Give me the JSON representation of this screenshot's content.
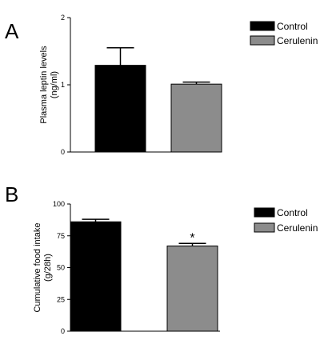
{
  "chart_data": [
    {
      "type": "bar",
      "panel": "A",
      "categories": [
        "Control",
        "Cerulenin"
      ],
      "values": [
        1.29,
        1.01
      ],
      "errors": [
        0.26,
        0.03
      ],
      "colors": [
        "#000000",
        "#8c8c8c"
      ],
      "ylabel_lines": [
        "Plasma leptin levels",
        "(ng/ml)"
      ],
      "ylim": [
        0,
        2
      ],
      "yticks": [
        0,
        1,
        2
      ],
      "ytick_labels": [
        "0",
        "1",
        "2"
      ],
      "significance": [
        "",
        ""
      ],
      "legend": {
        "position": "top-right",
        "entries": [
          {
            "label": "Control",
            "color": "#000000"
          },
          {
            "label": "Cerulenin",
            "color": "#8c8c8c"
          }
        ]
      }
    },
    {
      "type": "bar",
      "panel": "B",
      "categories": [
        "Control",
        "Cerulenin"
      ],
      "values": [
        86,
        67
      ],
      "errors": [
        2,
        2
      ],
      "colors": [
        "#000000",
        "#8c8c8c"
      ],
      "ylabel_lines": [
        "Cumulative food intake",
        "(g/28h)"
      ],
      "ylim": [
        0,
        100
      ],
      "yticks": [
        0,
        25,
        50,
        75,
        100
      ],
      "ytick_labels": [
        "0",
        "25",
        "50",
        "75",
        "100"
      ],
      "significance": [
        "",
        "*"
      ],
      "legend": {
        "position": "top-right",
        "entries": [
          {
            "label": "Control",
            "color": "#000000"
          },
          {
            "label": "Cerulenin",
            "color": "#8c8c8c"
          }
        ]
      }
    }
  ]
}
